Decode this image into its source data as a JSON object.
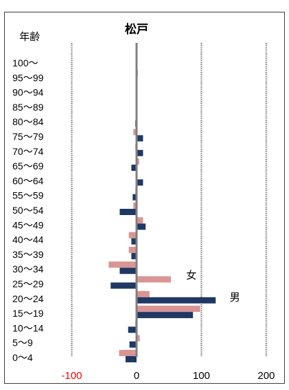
{
  "chart_data": {
    "type": "bar",
    "orientation": "horizontal",
    "title": "松戸",
    "ylabel": "年齢",
    "categories": [
      "100～",
      "95～99",
      "90～94",
      "85～89",
      "80～84",
      "75～79",
      "70～74",
      "65～69",
      "60～64",
      "55～59",
      "50～54",
      "45～49",
      "40～44",
      "35～39",
      "30～34",
      "25～29",
      "20～24",
      "15～19",
      "10～14",
      "5～9",
      "0～4"
    ],
    "series": [
      {
        "name": "女",
        "color": "#d99594",
        "values": [
          0,
          2,
          1,
          1,
          1,
          -5,
          -2,
          4,
          1,
          -2,
          -5,
          10,
          -12,
          -12,
          -43,
          53,
          20,
          98,
          -2,
          5,
          -27
        ]
      },
      {
        "name": "男",
        "color": "#1f3864",
        "values": [
          0,
          0,
          0,
          1,
          -2,
          10,
          10,
          -8,
          10,
          -6,
          -26,
          14,
          -8,
          -8,
          -26,
          -40,
          122,
          87,
          -13,
          -11,
          -17
        ]
      }
    ],
    "xticks": [
      "-100",
      "0",
      "100",
      "200"
    ],
    "xlim": [
      -100,
      200
    ],
    "xtick_colors": {
      "-100": "#ff0000"
    },
    "grid": "vertical dotted at -100, 100, 200",
    "zero_line_color": "#808080",
    "annotations": [
      "女",
      "男"
    ],
    "legend": "inline labels near bars"
  }
}
